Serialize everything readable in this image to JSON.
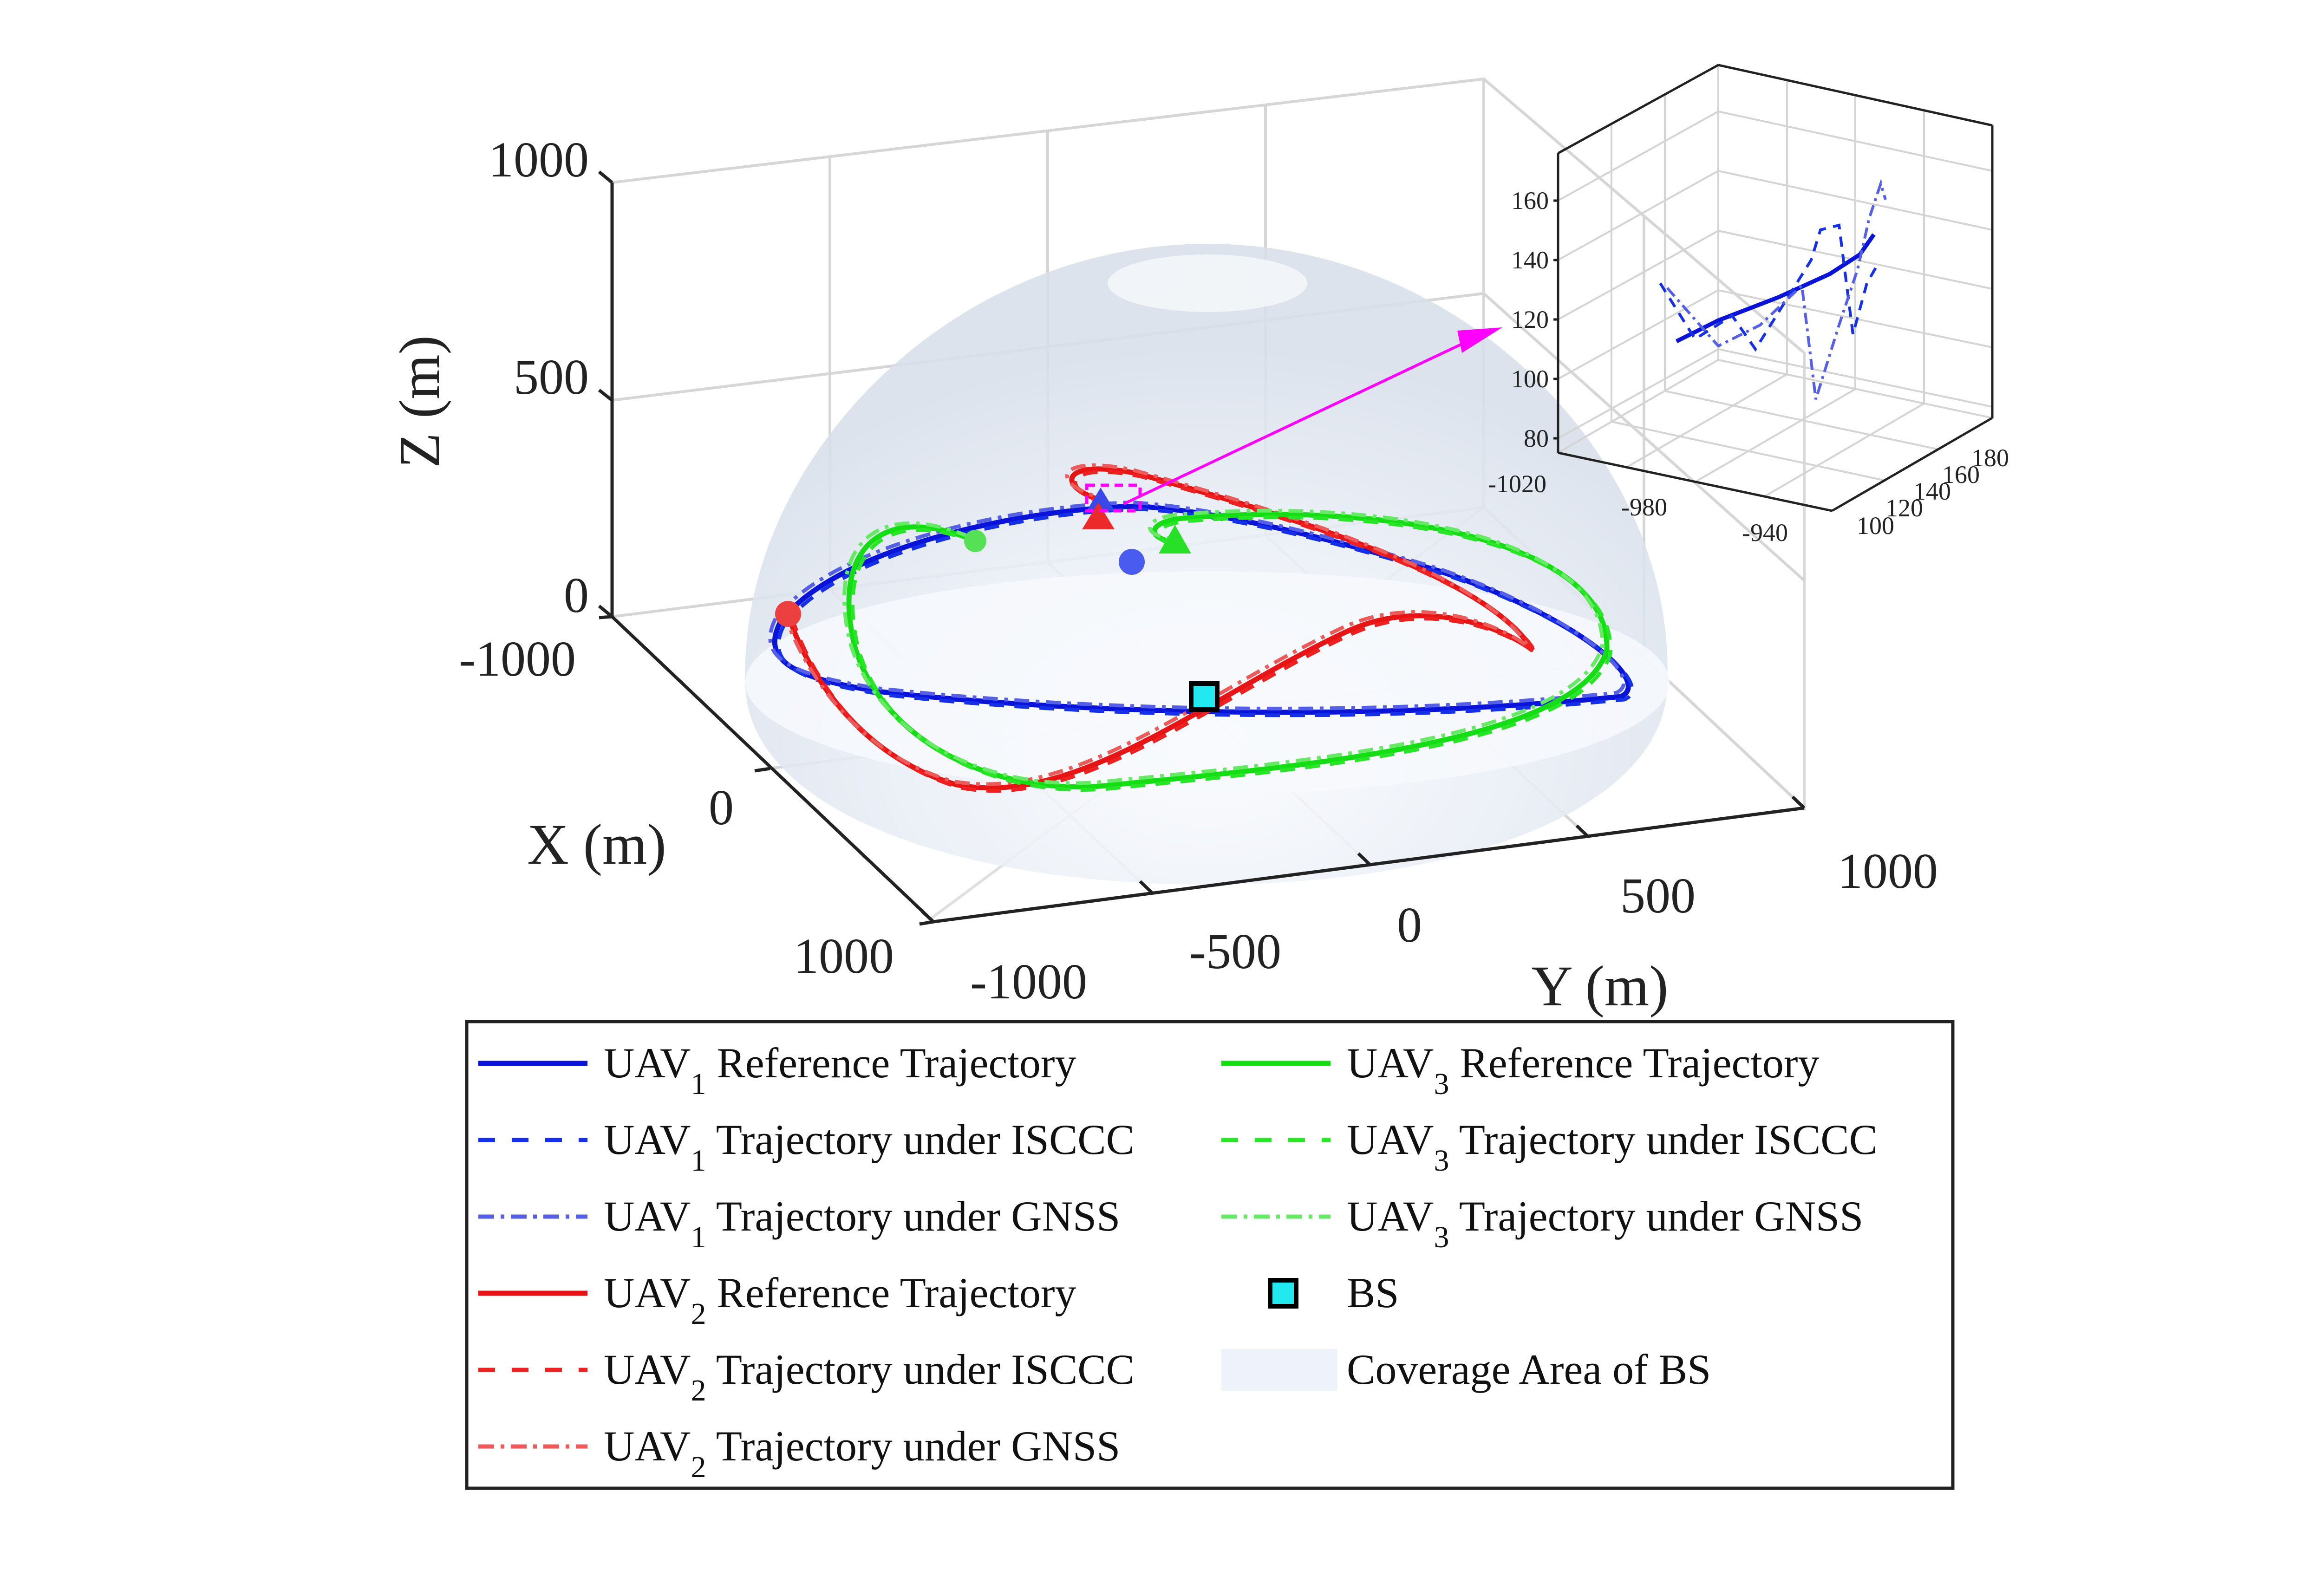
{
  "chart_data": [
    {
      "type": "line",
      "projection": "3d",
      "xlabel": "X (m)",
      "ylabel": "Y (m)",
      "zlabel": "Z (m)",
      "xlim": [
        -1000,
        1000
      ],
      "ylim": [
        -1000,
        1000
      ],
      "zlim": [
        0,
        1000
      ],
      "xticks": [
        "-1000",
        "0",
        "1000"
      ],
      "yticks": [
        "-1000",
        "-500",
        "0",
        "500",
        "1000"
      ],
      "zticks": [
        "0",
        "500",
        "1000"
      ],
      "grid": true,
      "series": [
        {
          "name": "UAV",
          "subscript": "1",
          "suffix": "Reference Trajectory",
          "color": "#0a14d8",
          "style": "solid"
        },
        {
          "name": "UAV",
          "subscript": "1",
          "suffix": "Trajectory under ISCCC",
          "color": "#1530e8",
          "style": "dashed"
        },
        {
          "name": "UAV",
          "subscript": "1",
          "suffix": "Trajectory under GNSS",
          "color": "#5560e6",
          "style": "dashdot"
        },
        {
          "name": "UAV",
          "subscript": "2",
          "suffix": "Reference Trajectory",
          "color": "#e61414",
          "style": "solid"
        },
        {
          "name": "UAV",
          "subscript": "2",
          "suffix": "Trajectory under ISCCC",
          "color": "#ee2020",
          "style": "dashed"
        },
        {
          "name": "UAV",
          "subscript": "2",
          "suffix": "Trajectory under GNSS",
          "color": "#ec5a5a",
          "style": "dashdot"
        },
        {
          "name": "UAV",
          "subscript": "3",
          "suffix": "Reference Trajectory",
          "color": "#14dd14",
          "style": "solid"
        },
        {
          "name": "UAV",
          "subscript": "3",
          "suffix": "Trajectory under ISCCC",
          "color": "#26e626",
          "style": "dashed"
        },
        {
          "name": "UAV",
          "subscript": "3",
          "suffix": "Trajectory under GNSS",
          "color": "#66ea66",
          "style": "dashdot"
        }
      ],
      "markers": [
        {
          "name": "BS",
          "shape": "square",
          "color": "#22e8f0",
          "x": 0,
          "y": 0,
          "z": 0
        },
        {
          "name": "Coverage Area of BS",
          "shape": "hemisphere",
          "color": "#e6ecf6",
          "radius": 1000
        }
      ]
    },
    {
      "type": "line",
      "projection": "3d",
      "inset": true,
      "xlim": [
        -1020,
        -920
      ],
      "ylim": [
        100,
        180
      ],
      "zlim": [
        70,
        170
      ],
      "xticks": [
        "-1020",
        "-980",
        "-940"
      ],
      "yticks": [
        "100",
        "120",
        "140",
        "160",
        "180"
      ],
      "zticks": [
        "80",
        "100",
        "120",
        "140",
        "160"
      ],
      "grid": true,
      "series": [
        {
          "name": "UAV1 Reference",
          "color": "#0a14d8",
          "style": "solid"
        },
        {
          "name": "UAV1 ISCCC",
          "color": "#1530e8",
          "style": "dashed"
        },
        {
          "name": "UAV1 GNSS",
          "color": "#5560e6",
          "style": "dashdot"
        }
      ]
    }
  ],
  "legend": {
    "entries": [
      {
        "name": "UAV",
        "sub": "1",
        "suffix": "Reference Trajectory",
        "color": "#0a14d8",
        "style": "solid"
      },
      {
        "name": "UAV",
        "sub": "1",
        "suffix": "Trajectory under ISCCC",
        "color": "#1530e8",
        "style": "dashed"
      },
      {
        "name": "UAV",
        "sub": "1",
        "suffix": "Trajectory under GNSS",
        "color": "#5560e6",
        "style": "dashdot"
      },
      {
        "name": "UAV",
        "sub": "2",
        "suffix": "Reference Trajectory",
        "color": "#e61414",
        "style": "solid"
      },
      {
        "name": "UAV",
        "sub": "2",
        "suffix": "Trajectory under ISCCC",
        "color": "#ee2020",
        "style": "dashed"
      },
      {
        "name": "UAV",
        "sub": "2",
        "suffix": "Trajectory under GNSS",
        "color": "#ec5a5a",
        "style": "dashdot"
      },
      {
        "name": "UAV",
        "sub": "3",
        "suffix": "Reference Trajectory",
        "color": "#14dd14",
        "style": "solid"
      },
      {
        "name": "UAV",
        "sub": "3",
        "suffix": "Trajectory under ISCCC",
        "color": "#26e626",
        "style": "dashed"
      },
      {
        "name": "UAV",
        "sub": "3",
        "suffix": "Trajectory under GNSS",
        "color": "#66ea66",
        "style": "dashdot"
      },
      {
        "name": "BS",
        "sub": "",
        "suffix": "",
        "color": "#22e8f0",
        "style": "square"
      },
      {
        "name": "Coverage Area of BS",
        "sub": "",
        "suffix": "",
        "color": "#eef3fb",
        "style": "patch"
      }
    ]
  }
}
